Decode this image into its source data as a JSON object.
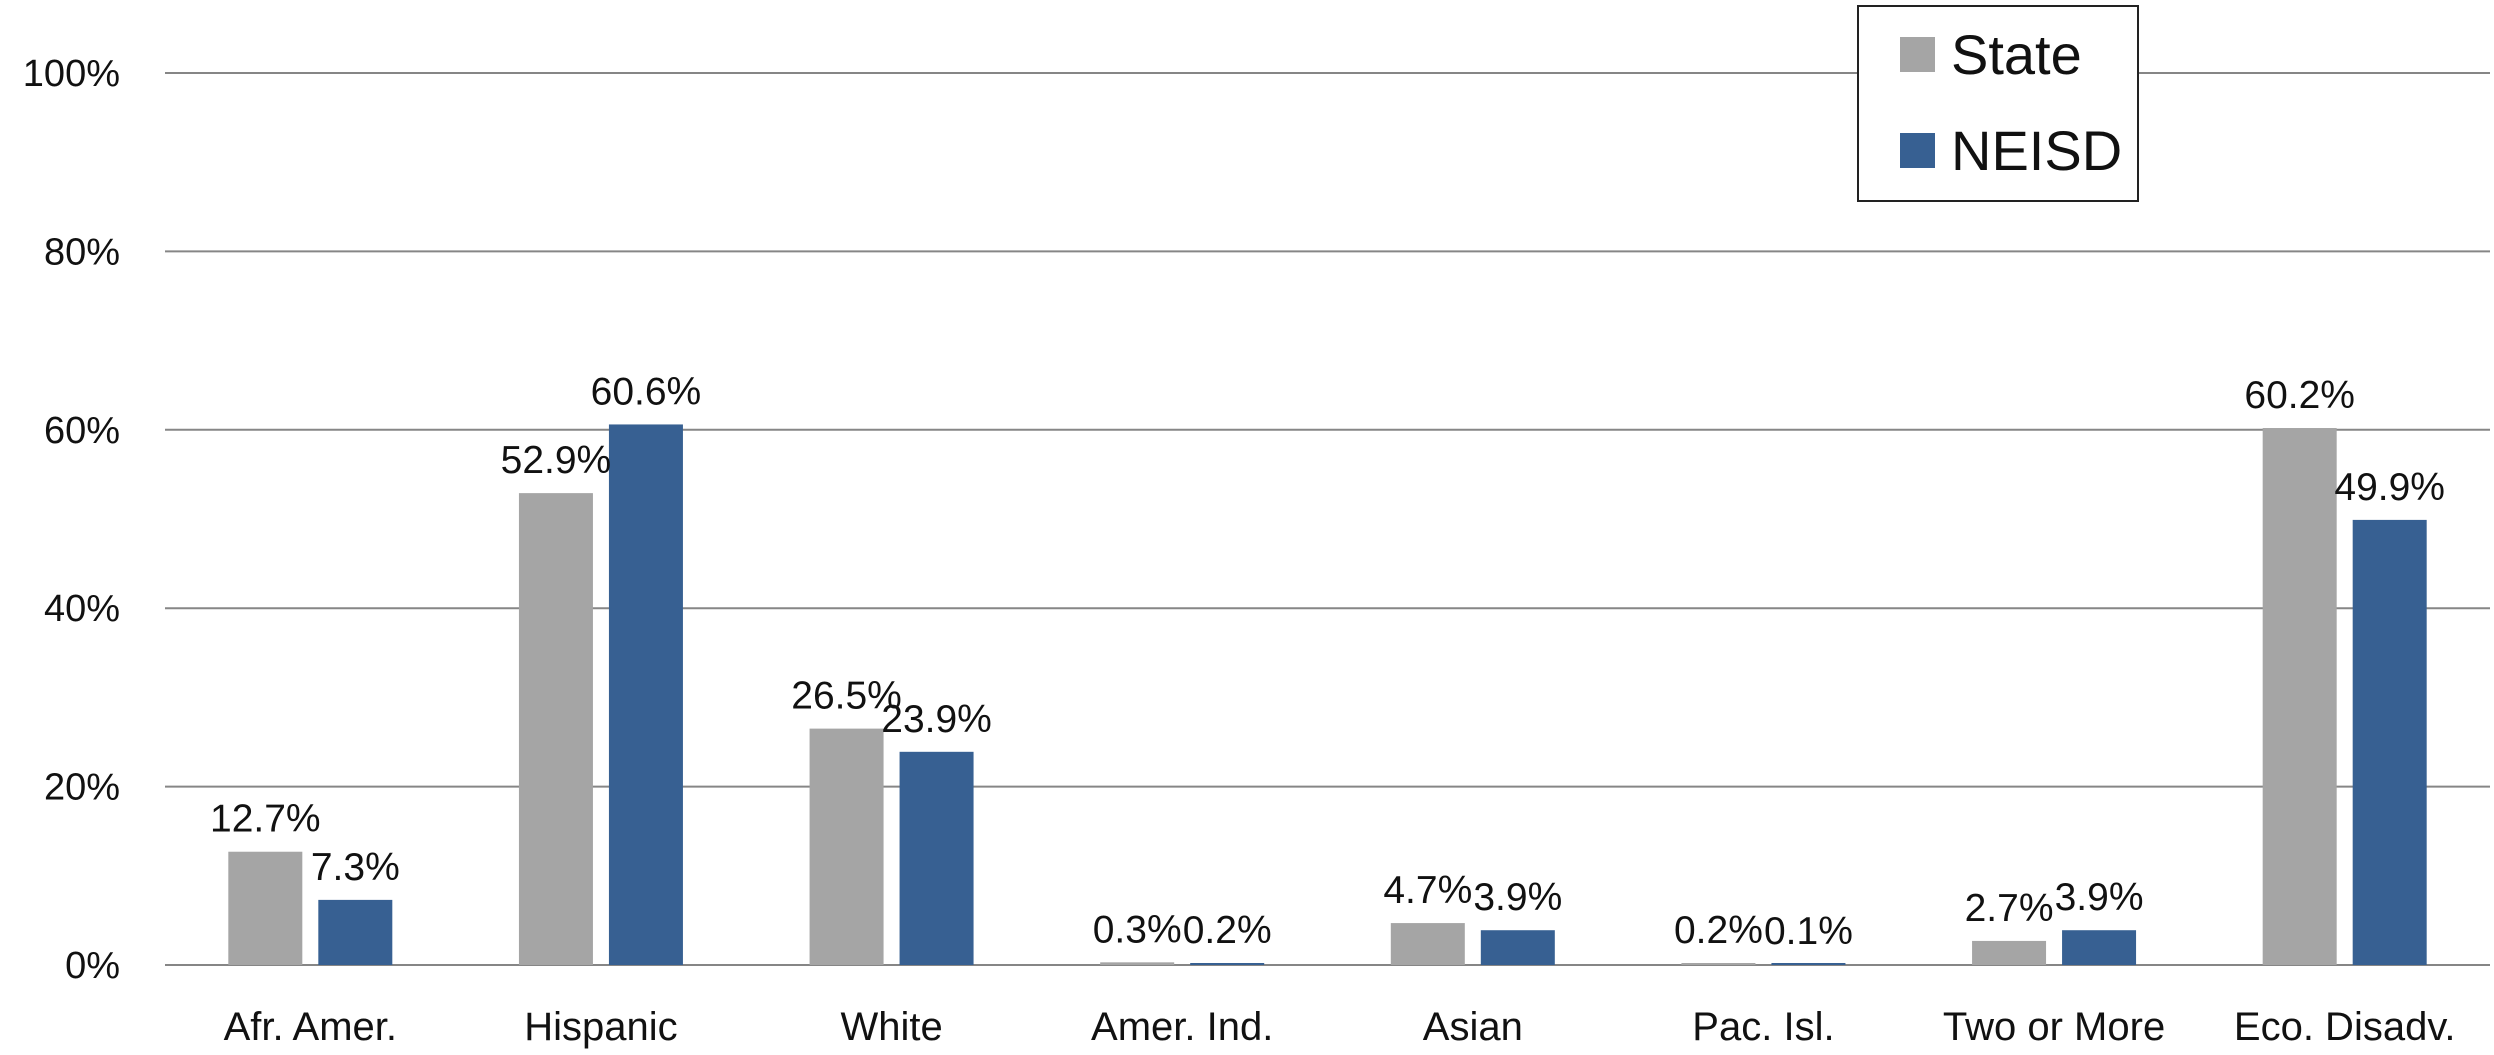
{
  "chart_data": {
    "type": "bar",
    "categories": [
      "Afr. Amer.",
      "Hispanic",
      "White",
      "Amer. Ind.",
      "Asian",
      "Pac. Isl.",
      "Two or More",
      "Eco. Disadv."
    ],
    "series": [
      {
        "name": "State",
        "color": "#a5a5a5",
        "values": [
          12.7,
          52.9,
          26.5,
          0.3,
          4.7,
          0.2,
          2.7,
          60.2
        ],
        "labels": [
          "12.7%",
          "52.9%",
          "26.5%",
          "0.3%",
          "4.7%",
          "0.2%",
          "2.7%",
          "60.2%"
        ]
      },
      {
        "name": "NEISD",
        "color": "#376092",
        "values": [
          7.3,
          60.6,
          23.9,
          0.2,
          3.9,
          0.1,
          3.9,
          49.9
        ],
        "labels": [
          "7.3%",
          "60.6%",
          "23.9%",
          "0.2%",
          "3.9%",
          "0.1%",
          "3.9%",
          "49.9%"
        ]
      }
    ],
    "yticks": [
      "0%",
      "20%",
      "40%",
      "60%",
      "80%",
      "100%"
    ],
    "ylim": [
      0,
      100
    ],
    "title": "",
    "xlabel": "",
    "ylabel": "",
    "grid": true,
    "gridline_color": "#868686",
    "legend_position": "top-right"
  }
}
